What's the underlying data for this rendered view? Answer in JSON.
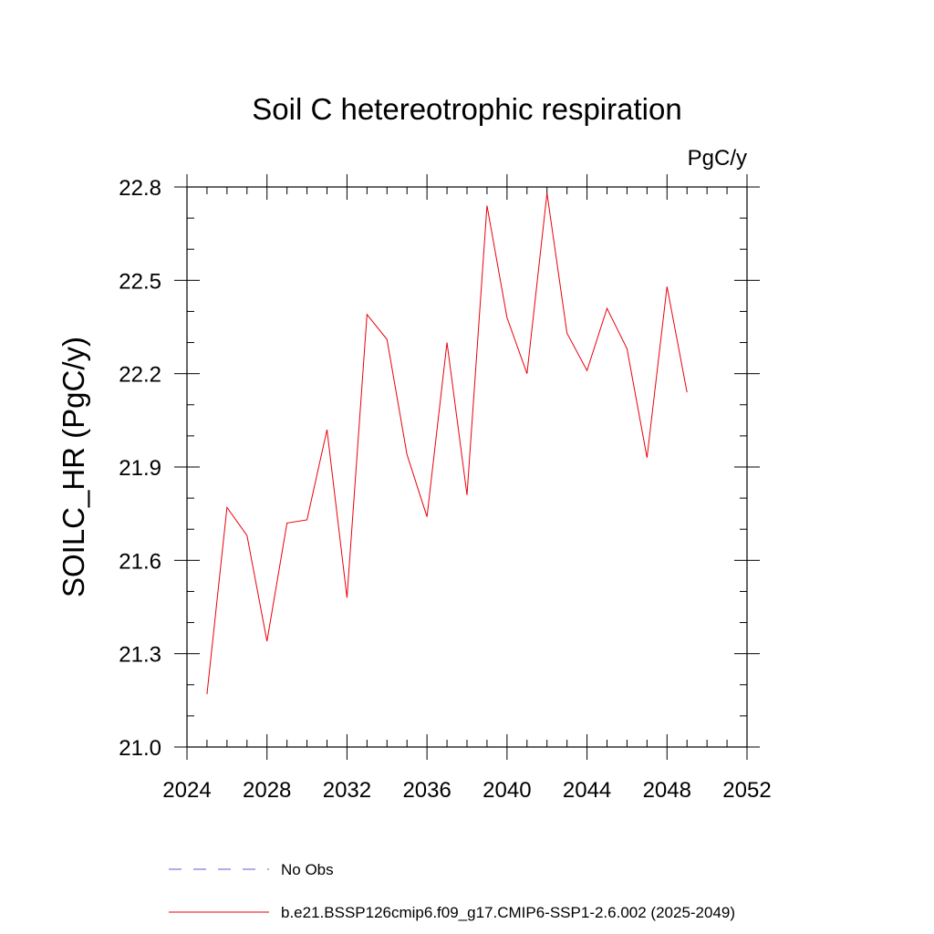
{
  "chart_data": {
    "type": "line",
    "title": "Soil C hetereotrophic respiration",
    "units": "PgC/y",
    "ylabel": "SOILC_HR  (PgC/y)",
    "xlabel": "",
    "xlim": [
      2024,
      2052
    ],
    "ylim": [
      21.0,
      22.8
    ],
    "xticks": [
      2024,
      2028,
      2032,
      2036,
      2040,
      2044,
      2048,
      2052
    ],
    "yticks": [
      21.0,
      21.3,
      21.6,
      21.9,
      22.2,
      22.5,
      22.8
    ],
    "xtick_labels": [
      "2024",
      "2028",
      "2032",
      "2036",
      "2040",
      "2044",
      "2048",
      "2052"
    ],
    "ytick_labels": [
      "21.0",
      "21.3",
      "21.6",
      "21.9",
      "22.2",
      "22.5",
      "22.8"
    ],
    "grid": false,
    "legend_position": "bottom",
    "series": [
      {
        "name": "b.e21.BSSP126cmip6.f09_g17.CMIP6-SSP1-2.6.002 (2025-2049)",
        "color": "#e8000b",
        "dash": "solid",
        "x": [
          2025,
          2026,
          2027,
          2028,
          2029,
          2030,
          2031,
          2032,
          2033,
          2034,
          2035,
          2036,
          2037,
          2038,
          2039,
          2040,
          2041,
          2042,
          2043,
          2044,
          2045,
          2046,
          2047,
          2048,
          2049
        ],
        "values": [
          21.17,
          21.77,
          21.68,
          21.34,
          21.72,
          21.73,
          22.02,
          21.48,
          22.39,
          22.31,
          21.94,
          21.74,
          22.3,
          21.81,
          22.74,
          22.38,
          22.2,
          22.78,
          22.33,
          22.21,
          22.41,
          22.28,
          21.93,
          22.48,
          22.14
        ]
      }
    ],
    "legend": [
      {
        "label": "No Obs",
        "color": "#6a5acd",
        "dash": "dashed"
      },
      {
        "label": "b.e21.BSSP126cmip6.f09_g17.CMIP6-SSP1-2.6.002 (2025-2049)",
        "color": "#e8000b",
        "dash": "solid"
      }
    ]
  }
}
